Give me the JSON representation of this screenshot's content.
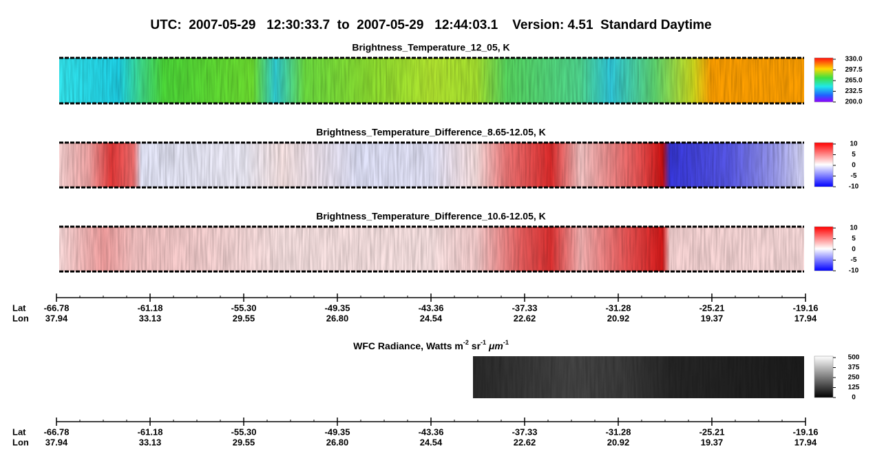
{
  "title": "UTC:  2007-05-29   12:30:33.7  to  2007-05-29   12:44:03.1    Version: 4.51  Standard Daytime",
  "panels": [
    {
      "title": "Brightness_Temperature_12_05, K",
      "colorbar": [
        "330.0",
        "297.5",
        "265.0",
        "232.5",
        "200.0"
      ]
    },
    {
      "title": "Brightness_Temperature_Difference_8.65-12.05, K",
      "colorbar": [
        "10",
        "5",
        "0",
        "-5",
        "-10"
      ]
    },
    {
      "title": "Brightness_Temperature_Difference_10.6-12.05, K",
      "colorbar": [
        "10",
        "5",
        "0",
        "-5",
        "-10"
      ]
    },
    {
      "title": [
        "WFC Radiance, Watts m",
        "-2",
        " sr",
        "-1",
        " ",
        "μm",
        "-1"
      ],
      "colorbar": [
        "500",
        "375",
        "250",
        "125",
        "0"
      ]
    }
  ],
  "axes": [
    {
      "lat_label": "Lat",
      "lon_label": "Lon",
      "lat": [
        "-66.78",
        "-61.18",
        "-55.30",
        "-49.35",
        "-43.36",
        "-37.33",
        "-31.28",
        "-25.21",
        "-19.16"
      ],
      "lon": [
        "37.94",
        "33.13",
        "29.55",
        "26.80",
        "24.54",
        "22.62",
        "20.92",
        "19.37",
        "17.94"
      ]
    },
    {
      "lat_label": "Lat",
      "lon_label": "Lon",
      "lat": [
        "-66.78",
        "-61.18",
        "-55.30",
        "-49.35",
        "-43.36",
        "-37.33",
        "-31.28",
        "-25.21",
        "-19.16"
      ],
      "lon": [
        "37.94",
        "33.13",
        "29.55",
        "26.80",
        "24.54",
        "22.62",
        "20.92",
        "19.37",
        "17.94"
      ]
    }
  ]
}
